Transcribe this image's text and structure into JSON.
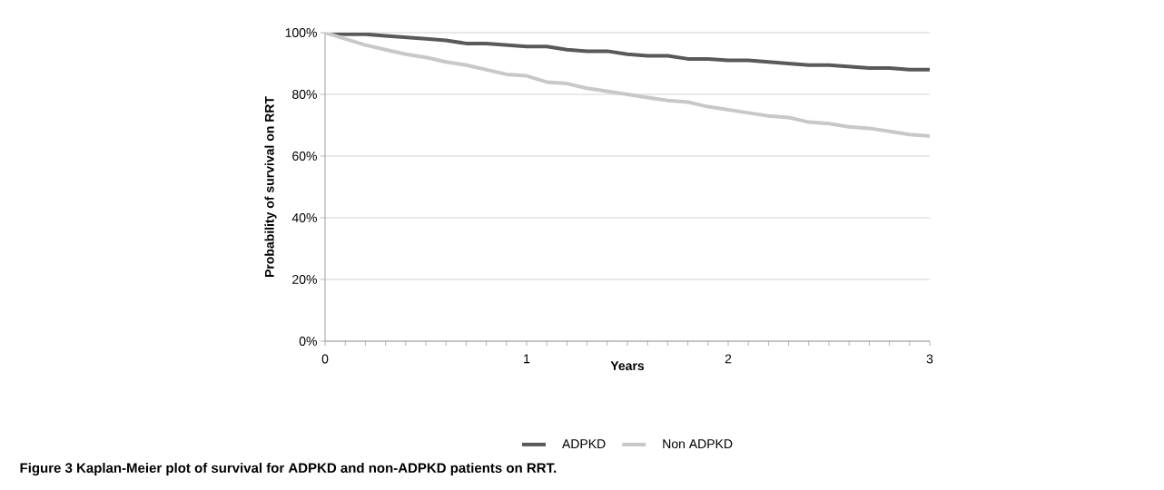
{
  "chart_data": {
    "type": "line",
    "xlabel": "Years",
    "ylabel": "Probability of survival on RRT",
    "annotations": [
      "Figure 3 Kaplan-Meier plot of survival for ADPKD and non-ADPKD patients on RRT."
    ],
    "x": [
      0,
      0.1,
      0.2,
      0.3,
      0.4,
      0.5,
      0.6,
      0.7,
      0.8,
      0.9,
      1,
      1.1,
      1.2,
      1.3,
      1.4,
      1.5,
      1.6,
      1.7,
      1.8,
      1.9,
      2,
      2.1,
      2.2,
      2.3,
      2.4,
      2.5,
      2.6,
      2.7,
      2.8,
      2.9,
      3
    ],
    "series": [
      {
        "name": "ADPKD",
        "color": "#595959",
        "values": [
          100,
          99.5,
          99.5,
          99,
          98.5,
          98,
          97.5,
          96.5,
          96.5,
          96,
          95.5,
          95.5,
          94.5,
          94,
          94,
          93,
          92.5,
          92.5,
          91.5,
          91.5,
          91,
          91,
          90.5,
          90,
          89.5,
          89.5,
          89,
          88.5,
          88.5,
          88,
          88
        ]
      },
      {
        "name": "Non ADPKD",
        "color": "#c8c8c8",
        "values": [
          100,
          98,
          96,
          94.5,
          93,
          92,
          90.5,
          89.5,
          88,
          86.5,
          86,
          84,
          83.5,
          82,
          81,
          80,
          79,
          78,
          77.5,
          76,
          75,
          74,
          73,
          72.5,
          71,
          70.5,
          69.5,
          69,
          68,
          67,
          66.5
        ]
      }
    ],
    "xlim": [
      0,
      3
    ],
    "xticks": [
      0,
      1,
      2,
      3
    ],
    "ylim": [
      0,
      100
    ],
    "yticks": [
      {
        "value": 0,
        "label": "0%"
      },
      {
        "value": 20,
        "label": "20%"
      },
      {
        "value": 40,
        "label": "40%"
      },
      {
        "value": 60,
        "label": "60%"
      },
      {
        "value": 80,
        "label": "80%"
      },
      {
        "value": 100,
        "label": "100%"
      }
    ],
    "grid": "y",
    "legend": "bottom",
    "marker": "none",
    "line_style": "solid"
  }
}
